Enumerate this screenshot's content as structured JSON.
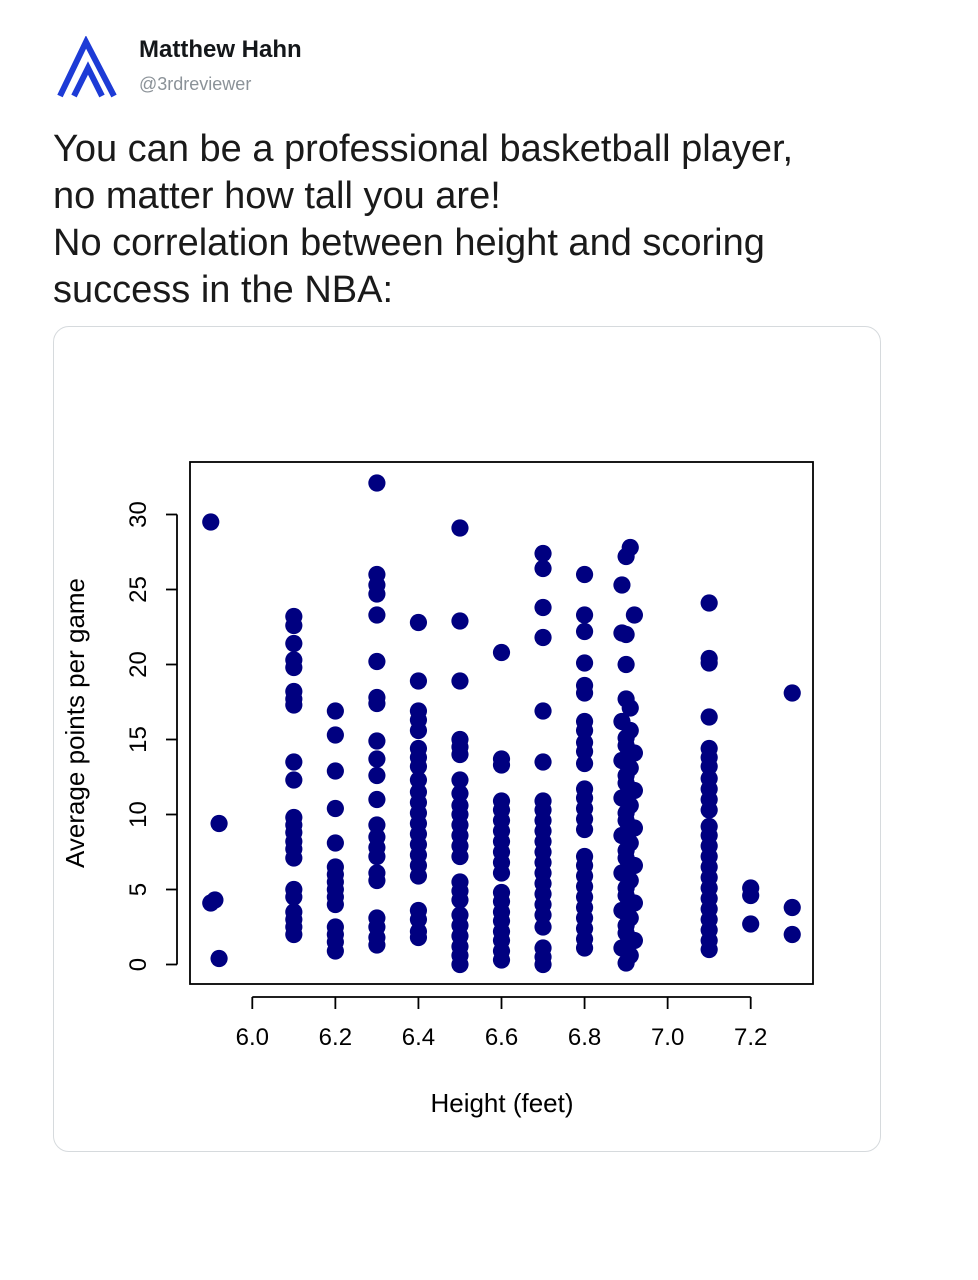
{
  "tweet": {
    "author_name": "Matthew Hahn",
    "author_handle": "@3rdreviewer",
    "avatar_icon": "mountain-logo-icon",
    "avatar_color": "#1d3bd6",
    "text": "You can be a professional basketball player,\nno matter how tall you are!\nNo correlation between height and scoring\nsuccess in the NBA:"
  },
  "chart_data": {
    "type": "scatter",
    "xlabel": "Height (feet)",
    "ylabel": "Average points per game",
    "xlim": [
      5.85,
      7.35
    ],
    "ylim": [
      -1.3,
      33.5
    ],
    "x_ticks": [
      "6.0",
      "6.2",
      "6.4",
      "6.6",
      "6.8",
      "7.0",
      "7.2"
    ],
    "y_ticks": [
      "0",
      "5",
      "10",
      "15",
      "20",
      "25",
      "30"
    ],
    "point_color": "#000080",
    "grid": false,
    "legend": "none",
    "points": [
      [
        5.9,
        29.5
      ],
      [
        5.9,
        4.1
      ],
      [
        5.91,
        4.3
      ],
      [
        5.92,
        9.4
      ],
      [
        5.92,
        0.4
      ],
      [
        6.1,
        23.2
      ],
      [
        6.1,
        22.6
      ],
      [
        6.1,
        21.4
      ],
      [
        6.1,
        20.3
      ],
      [
        6.1,
        19.8
      ],
      [
        6.1,
        18.2
      ],
      [
        6.1,
        17.7
      ],
      [
        6.1,
        17.3
      ],
      [
        6.1,
        13.5
      ],
      [
        6.1,
        12.3
      ],
      [
        6.1,
        9.8
      ],
      [
        6.1,
        9.3
      ],
      [
        6.1,
        8.8
      ],
      [
        6.1,
        8.2
      ],
      [
        6.1,
        7.7
      ],
      [
        6.1,
        7.1
      ],
      [
        6.1,
        5.0
      ],
      [
        6.1,
        4.5
      ],
      [
        6.1,
        3.5
      ],
      [
        6.1,
        3.0
      ],
      [
        6.1,
        2.5
      ],
      [
        6.1,
        2.0
      ],
      [
        6.2,
        16.9
      ],
      [
        6.2,
        15.3
      ],
      [
        6.2,
        12.9
      ],
      [
        6.2,
        10.4
      ],
      [
        6.2,
        8.1
      ],
      [
        6.2,
        6.5
      ],
      [
        6.2,
        6.0
      ],
      [
        6.2,
        5.5
      ],
      [
        6.2,
        5.0
      ],
      [
        6.2,
        4.5
      ],
      [
        6.2,
        4.0
      ],
      [
        6.2,
        2.5
      ],
      [
        6.2,
        2.0
      ],
      [
        6.2,
        1.5
      ],
      [
        6.2,
        0.9
      ],
      [
        6.3,
        32.1
      ],
      [
        6.3,
        26.0
      ],
      [
        6.3,
        25.3
      ],
      [
        6.3,
        24.7
      ],
      [
        6.3,
        23.3
      ],
      [
        6.3,
        20.2
      ],
      [
        6.3,
        17.8
      ],
      [
        6.3,
        17.4
      ],
      [
        6.3,
        14.9
      ],
      [
        6.3,
        13.7
      ],
      [
        6.3,
        12.6
      ],
      [
        6.3,
        11.0
      ],
      [
        6.3,
        9.3
      ],
      [
        6.3,
        8.5
      ],
      [
        6.3,
        7.8
      ],
      [
        6.3,
        7.2
      ],
      [
        6.3,
        6.1
      ],
      [
        6.3,
        5.6
      ],
      [
        6.3,
        3.1
      ],
      [
        6.3,
        2.5
      ],
      [
        6.3,
        1.8
      ],
      [
        6.3,
        1.3
      ],
      [
        6.4,
        22.8
      ],
      [
        6.4,
        18.9
      ],
      [
        6.4,
        16.9
      ],
      [
        6.4,
        16.3
      ],
      [
        6.4,
        15.6
      ],
      [
        6.4,
        14.4
      ],
      [
        6.4,
        13.8
      ],
      [
        6.4,
        13.2
      ],
      [
        6.4,
        12.3
      ],
      [
        6.4,
        11.5
      ],
      [
        6.4,
        10.8
      ],
      [
        6.4,
        10.1
      ],
      [
        6.4,
        9.4
      ],
      [
        6.4,
        8.7
      ],
      [
        6.4,
        8.0
      ],
      [
        6.4,
        7.3
      ],
      [
        6.4,
        6.6
      ],
      [
        6.4,
        5.9
      ],
      [
        6.4,
        3.6
      ],
      [
        6.4,
        3.0
      ],
      [
        6.4,
        2.2
      ],
      [
        6.4,
        1.8
      ],
      [
        6.5,
        29.1
      ],
      [
        6.5,
        22.9
      ],
      [
        6.5,
        18.9
      ],
      [
        6.5,
        15.0
      ],
      [
        6.5,
        14.5
      ],
      [
        6.5,
        14.0
      ],
      [
        6.5,
        12.3
      ],
      [
        6.5,
        11.4
      ],
      [
        6.5,
        10.6
      ],
      [
        6.5,
        10.0
      ],
      [
        6.5,
        9.3
      ],
      [
        6.5,
        8.6
      ],
      [
        6.5,
        7.9
      ],
      [
        6.5,
        7.2
      ],
      [
        6.5,
        5.5
      ],
      [
        6.5,
        4.9
      ],
      [
        6.5,
        4.3
      ],
      [
        6.5,
        3.3
      ],
      [
        6.5,
        2.6
      ],
      [
        6.5,
        1.9
      ],
      [
        6.5,
        1.2
      ],
      [
        6.5,
        0.6
      ],
      [
        6.5,
        0.0
      ],
      [
        6.6,
        20.8
      ],
      [
        6.6,
        13.7
      ],
      [
        6.6,
        13.3
      ],
      [
        6.6,
        10.9
      ],
      [
        6.6,
        10.3
      ],
      [
        6.6,
        9.6
      ],
      [
        6.6,
        8.9
      ],
      [
        6.6,
        8.2
      ],
      [
        6.6,
        7.5
      ],
      [
        6.6,
        6.8
      ],
      [
        6.6,
        6.1
      ],
      [
        6.6,
        4.8
      ],
      [
        6.6,
        4.2
      ],
      [
        6.6,
        3.5
      ],
      [
        6.6,
        2.9
      ],
      [
        6.6,
        2.2
      ],
      [
        6.6,
        1.6
      ],
      [
        6.6,
        0.9
      ],
      [
        6.6,
        0.3
      ],
      [
        6.7,
        27.4
      ],
      [
        6.7,
        26.4
      ],
      [
        6.7,
        23.8
      ],
      [
        6.7,
        21.8
      ],
      [
        6.7,
        16.9
      ],
      [
        6.7,
        13.5
      ],
      [
        6.7,
        10.9
      ],
      [
        6.7,
        10.3
      ],
      [
        6.7,
        9.6
      ],
      [
        6.7,
        8.9
      ],
      [
        6.7,
        8.2
      ],
      [
        6.7,
        7.5
      ],
      [
        6.7,
        6.8
      ],
      [
        6.7,
        6.1
      ],
      [
        6.7,
        5.4
      ],
      [
        6.7,
        4.7
      ],
      [
        6.7,
        4.0
      ],
      [
        6.7,
        3.3
      ],
      [
        6.7,
        2.5
      ],
      [
        6.7,
        1.1
      ],
      [
        6.7,
        0.5
      ],
      [
        6.7,
        0.0
      ],
      [
        6.8,
        26.0
      ],
      [
        6.8,
        23.3
      ],
      [
        6.8,
        22.2
      ],
      [
        6.8,
        20.1
      ],
      [
        6.8,
        18.6
      ],
      [
        6.8,
        18.1
      ],
      [
        6.8,
        16.2
      ],
      [
        6.8,
        15.6
      ],
      [
        6.8,
        14.8
      ],
      [
        6.8,
        14.2
      ],
      [
        6.8,
        13.4
      ],
      [
        6.8,
        11.7
      ],
      [
        6.8,
        11.1
      ],
      [
        6.8,
        10.4
      ],
      [
        6.8,
        9.7
      ],
      [
        6.8,
        9.0
      ],
      [
        6.8,
        7.2
      ],
      [
        6.8,
        6.6
      ],
      [
        6.8,
        5.9
      ],
      [
        6.8,
        5.2
      ],
      [
        6.8,
        4.5
      ],
      [
        6.8,
        3.8
      ],
      [
        6.8,
        3.1
      ],
      [
        6.8,
        2.4
      ],
      [
        6.8,
        1.7
      ],
      [
        6.8,
        1.1
      ],
      [
        6.91,
        27.8
      ],
      [
        6.9,
        27.2
      ],
      [
        6.89,
        25.3
      ],
      [
        6.92,
        23.3
      ],
      [
        6.89,
        22.1
      ],
      [
        6.9,
        22.0
      ],
      [
        6.9,
        20.0
      ],
      [
        6.9,
        17.7
      ],
      [
        6.91,
        17.1
      ],
      [
        6.89,
        16.2
      ],
      [
        6.91,
        15.6
      ],
      [
        6.9,
        15.1
      ],
      [
        6.9,
        14.6
      ],
      [
        6.92,
        14.1
      ],
      [
        6.89,
        13.6
      ],
      [
        6.91,
        13.1
      ],
      [
        6.9,
        12.6
      ],
      [
        6.9,
        12.1
      ],
      [
        6.92,
        11.6
      ],
      [
        6.89,
        11.1
      ],
      [
        6.91,
        10.6
      ],
      [
        6.9,
        10.1
      ],
      [
        6.9,
        9.6
      ],
      [
        6.92,
        9.1
      ],
      [
        6.89,
        8.6
      ],
      [
        6.91,
        8.1
      ],
      [
        6.9,
        7.6
      ],
      [
        6.9,
        7.1
      ],
      [
        6.92,
        6.6
      ],
      [
        6.89,
        6.1
      ],
      [
        6.91,
        5.6
      ],
      [
        6.9,
        5.1
      ],
      [
        6.9,
        4.6
      ],
      [
        6.92,
        4.1
      ],
      [
        6.89,
        3.6
      ],
      [
        6.91,
        3.1
      ],
      [
        6.9,
        2.6
      ],
      [
        6.9,
        2.1
      ],
      [
        6.92,
        1.6
      ],
      [
        6.89,
        1.1
      ],
      [
        6.91,
        0.6
      ],
      [
        6.9,
        0.1
      ],
      [
        7.1,
        24.1
      ],
      [
        7.1,
        20.4
      ],
      [
        7.1,
        20.1
      ],
      [
        7.1,
        16.5
      ],
      [
        7.1,
        14.4
      ],
      [
        7.1,
        13.8
      ],
      [
        7.1,
        13.2
      ],
      [
        7.1,
        12.4
      ],
      [
        7.1,
        11.7
      ],
      [
        7.1,
        11.0
      ],
      [
        7.1,
        10.3
      ],
      [
        7.1,
        9.2
      ],
      [
        7.1,
        8.6
      ],
      [
        7.1,
        7.9
      ],
      [
        7.1,
        7.2
      ],
      [
        7.1,
        6.5
      ],
      [
        7.1,
        5.8
      ],
      [
        7.1,
        5.1
      ],
      [
        7.1,
        4.4
      ],
      [
        7.1,
        3.7
      ],
      [
        7.1,
        3.0
      ],
      [
        7.1,
        2.3
      ],
      [
        7.1,
        1.6
      ],
      [
        7.1,
        1.0
      ],
      [
        7.2,
        5.1
      ],
      [
        7.2,
        4.6
      ],
      [
        7.2,
        2.7
      ],
      [
        7.3,
        18.1
      ],
      [
        7.3,
        3.8
      ],
      [
        7.3,
        2.0
      ]
    ]
  }
}
